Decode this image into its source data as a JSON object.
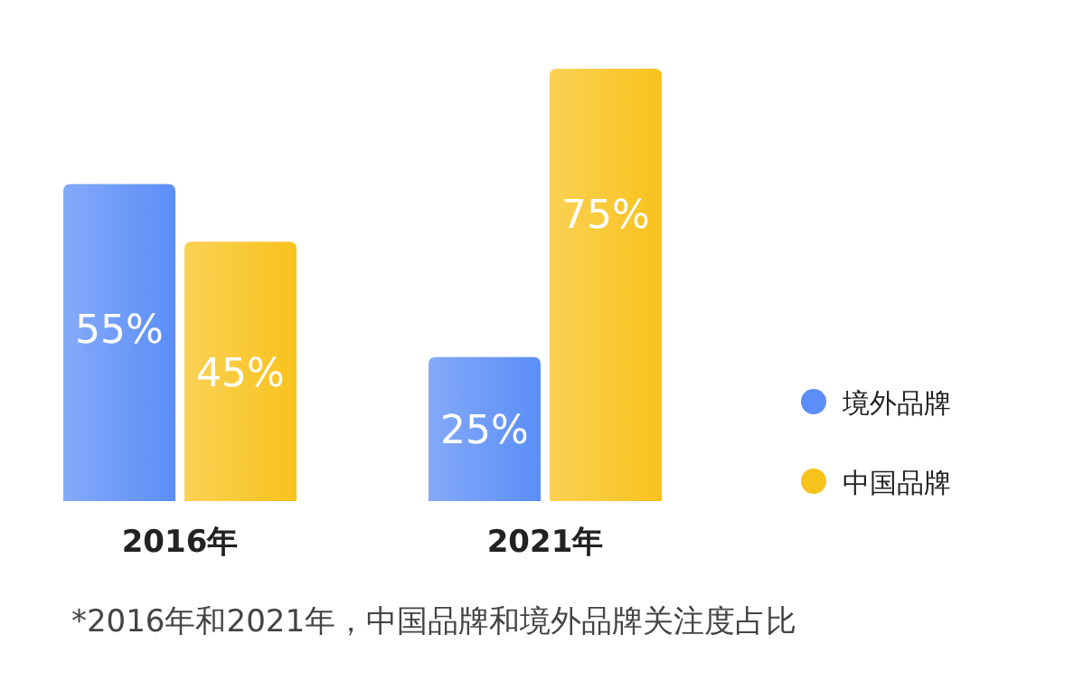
{
  "chart_data": {
    "type": "bar",
    "categories": [
      "2016年",
      "2021年"
    ],
    "series": [
      {
        "name": "境外品牌",
        "color": "#5b8ef7",
        "values": [
          55,
          25
        ],
        "value_labels": [
          "55%",
          "25%"
        ]
      },
      {
        "name": "中国品牌",
        "color": "#f8c21c",
        "values": [
          45,
          75
        ],
        "value_labels": [
          "45%",
          "75%"
        ]
      }
    ],
    "legend": "right",
    "annotations": [
      "*2016年和2021年，中国品牌和境外品牌关注度占比"
    ]
  }
}
